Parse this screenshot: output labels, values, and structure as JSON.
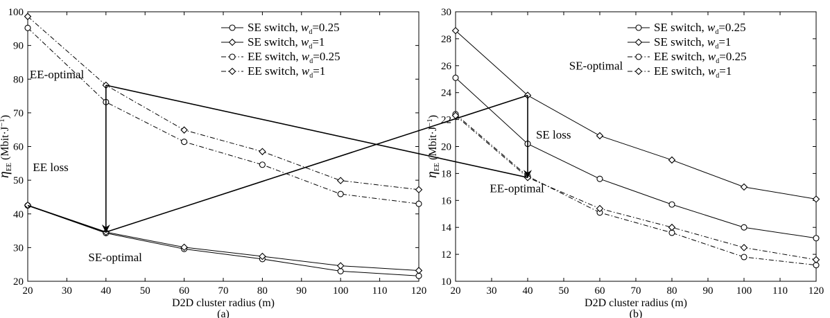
{
  "chart_data": [
    {
      "type": "line",
      "caption": "(a)",
      "xlabel": "D2D cluster radius (m)",
      "ylabel": {
        "symbol": "η",
        "subscript": "EE",
        "unit": "(Mbit·J",
        "unit_sup": "−1",
        "unit_close": ")"
      },
      "x": [
        20,
        40,
        60,
        80,
        100,
        120
      ],
      "xlim": [
        20,
        120
      ],
      "ylim": [
        20,
        100
      ],
      "xticks": [
        20,
        30,
        40,
        50,
        60,
        70,
        80,
        90,
        100,
        110,
        120
      ],
      "yticks": [
        20,
        30,
        40,
        50,
        60,
        70,
        80,
        90,
        100
      ],
      "grid": false,
      "legend_position": "top-right",
      "series": [
        {
          "name": "SE switch, w_d=0.25",
          "label_main": "SE switch, ",
          "label_var": "w",
          "label_sub": "d",
          "label_val": "=0.25",
          "marker": "circle",
          "line": "solid",
          "values": [
            42.5,
            34.3,
            29.6,
            26.6,
            23.0,
            21.6
          ]
        },
        {
          "name": "SE switch, w_d=1",
          "label_main": "SE switch, ",
          "label_var": "w",
          "label_sub": "d",
          "label_val": "=1",
          "marker": "diamond",
          "line": "solid",
          "values": [
            42.6,
            34.6,
            30.1,
            27.4,
            24.6,
            23.2
          ]
        },
        {
          "name": "EE switch, w_d=0.25",
          "label_main": "EE switch, ",
          "label_var": "w",
          "label_sub": "d",
          "label_val": "=0.25",
          "marker": "circle",
          "line": "dashdot",
          "values": [
            95.2,
            73.2,
            61.4,
            54.6,
            45.9,
            43.0
          ]
        },
        {
          "name": "EE switch, w_d=1",
          "label_main": "EE switch, ",
          "label_var": "w",
          "label_sub": "d",
          "label_val": "=1",
          "marker": "diamond",
          "line": "dashdot",
          "values": [
            98.6,
            78.2,
            64.9,
            58.5,
            49.9,
            47.2
          ]
        }
      ],
      "annotations": [
        {
          "text": "EE-optimal",
          "x": 20.5,
          "y": 80.3
        },
        {
          "text": "EE loss",
          "x": 21.3,
          "y": 52.7
        },
        {
          "text": "SE-optimal",
          "x": 35.5,
          "y": 26.0
        }
      ]
    },
    {
      "type": "line",
      "caption": "(b)",
      "xlabel": "D2D cluster radius (m)",
      "ylabel": {
        "symbol": "η",
        "subscript": "EE",
        "unit": "(Mbit·J",
        "unit_sup": "−1",
        "unit_close": ")"
      },
      "x": [
        20,
        40,
        60,
        80,
        100,
        120
      ],
      "xlim": [
        20,
        120
      ],
      "ylim": [
        10,
        30
      ],
      "xticks": [
        20,
        30,
        40,
        50,
        60,
        70,
        80,
        90,
        100,
        110,
        120
      ],
      "yticks": [
        10,
        12,
        14,
        16,
        18,
        20,
        22,
        24,
        26,
        28,
        30
      ],
      "grid": false,
      "legend_position": "top-right",
      "series": [
        {
          "name": "SE switch, w_d=0.25",
          "label_main": "SE switch, ",
          "label_var": "w",
          "label_sub": "d",
          "label_val": "=0.25",
          "marker": "circle",
          "line": "solid",
          "values": [
            25.1,
            20.2,
            17.6,
            15.7,
            14.0,
            13.2
          ]
        },
        {
          "name": "SE switch, w_d=1",
          "label_main": "SE switch, ",
          "label_var": "w",
          "label_sub": "d",
          "label_val": "=1",
          "marker": "diamond",
          "line": "solid",
          "values": [
            28.6,
            23.8,
            20.8,
            19.0,
            17.0,
            16.1
          ]
        },
        {
          "name": "EE switch, w_d=0.25",
          "label_main": "EE switch, ",
          "label_var": "w",
          "label_sub": "d",
          "label_val": "=0.25",
          "marker": "circle",
          "line": "dashdot",
          "values": [
            22.4,
            17.8,
            15.1,
            13.6,
            11.8,
            11.2
          ]
        },
        {
          "name": "EE switch, w_d=1",
          "label_main": "EE switch, ",
          "label_var": "w",
          "label_sub": "d",
          "label_val": "=1",
          "marker": "diamond",
          "line": "dashdot",
          "values": [
            22.3,
            17.7,
            15.4,
            14.0,
            12.5,
            11.6
          ]
        }
      ],
      "annotations": [
        {
          "text": "SE-optimal",
          "x": 51.5,
          "y": 25.7
        },
        {
          "text": "SE loss",
          "x": 42.3,
          "y": 20.6
        },
        {
          "text": "EE-optimal",
          "x": 29.5,
          "y": 16.6
        }
      ]
    }
  ]
}
